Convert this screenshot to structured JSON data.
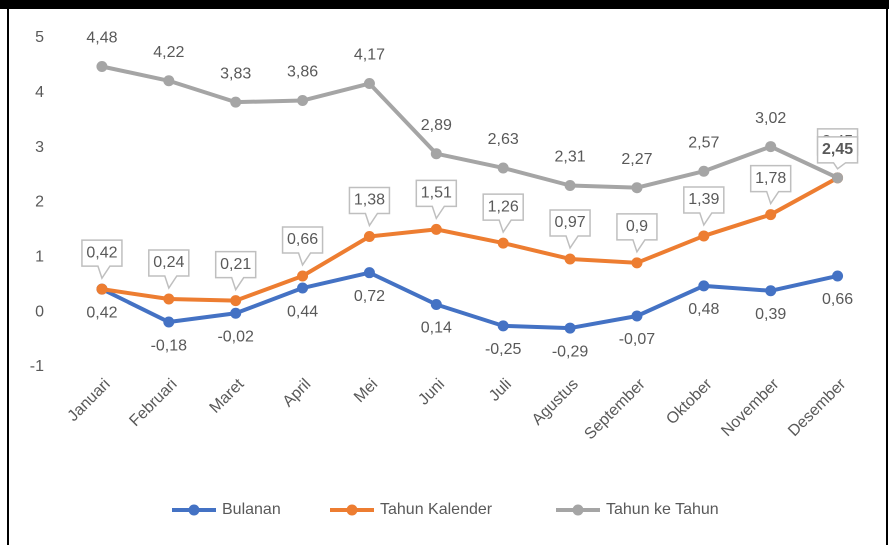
{
  "chart_data": {
    "type": "line",
    "categories": [
      "Januari",
      "Februari",
      "Maret",
      "April",
      "Mei",
      "Juni",
      "Juli",
      "Agustus",
      "September",
      "Oktober",
      "November",
      "Desember"
    ],
    "series": [
      {
        "name": "Bulanan",
        "color": "#4472c4",
        "values": [
          0.42,
          -0.18,
          -0.02,
          0.44,
          0.72,
          0.14,
          -0.25,
          -0.29,
          -0.07,
          0.48,
          0.39,
          0.66
        ],
        "value_labels": [
          "0,42",
          "-0,18",
          "-0,02",
          "0,44",
          "0,72",
          "0,14",
          "-0,25",
          "-0,29",
          "-0,07",
          "0,48",
          "0,39",
          "0,66"
        ]
      },
      {
        "name": "Tahun Kalender",
        "color": "#ed7d31",
        "values": [
          0.42,
          0.24,
          0.21,
          0.66,
          1.38,
          1.51,
          1.26,
          0.97,
          0.9,
          1.39,
          1.78,
          2.45
        ],
        "value_labels": [
          "0,42",
          "0,24",
          "0,21",
          "0,66",
          "1,38",
          "1,51",
          "1,26",
          "0,97",
          "0,9",
          "1,39",
          "1,78",
          "2,45"
        ]
      },
      {
        "name": "Tahun ke Tahun",
        "color": "#a5a5a5",
        "values": [
          4.48,
          4.22,
          3.83,
          3.86,
          4.17,
          2.89,
          2.63,
          2.31,
          2.27,
          2.57,
          3.02,
          2.45
        ],
        "value_labels": [
          "4,48",
          "4,22",
          "3,83",
          "3,86",
          "4,17",
          "2,89",
          "2,63",
          "2,31",
          "2,27",
          "2,57",
          "3,02",
          "2,45"
        ]
      }
    ],
    "ylim": [
      -1,
      5
    ],
    "yticks": [
      -1,
      0,
      1,
      2,
      3,
      4,
      5
    ],
    "grid": false,
    "legend": "bottom"
  }
}
